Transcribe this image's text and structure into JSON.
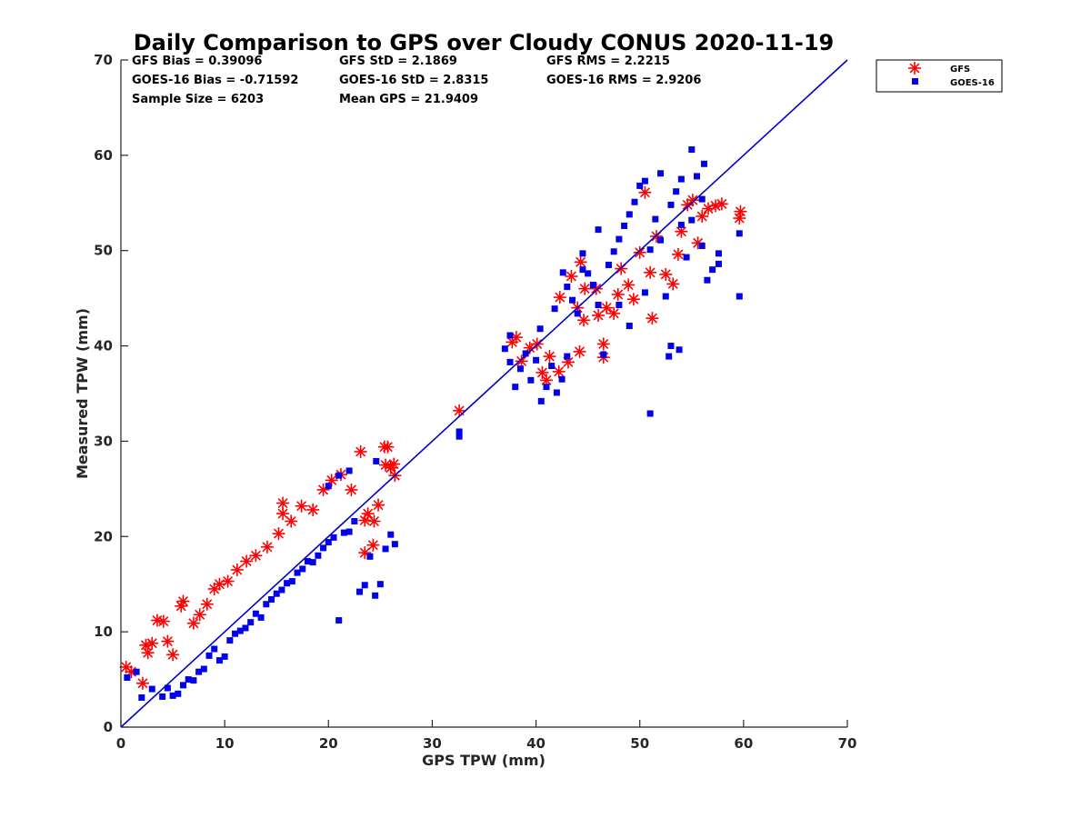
{
  "chart_data": {
    "type": "scatter",
    "title": "Daily Comparison to GPS over Cloudy CONUS 2020-11-19",
    "xlabel": "GPS TPW (mm)",
    "ylabel": "Measured TPW (mm)",
    "xlim": [
      0,
      70
    ],
    "ylim": [
      0,
      70
    ],
    "xticks": [
      "0",
      "10",
      "20",
      "30",
      "40",
      "50",
      "60",
      "70"
    ],
    "yticks": [
      "0",
      "10",
      "20",
      "30",
      "40",
      "50",
      "60",
      "70"
    ],
    "grid": false,
    "legend_position": "outside-top-right",
    "reference_line": {
      "name": "1:1 line",
      "color": "#0000cc",
      "x": [
        0,
        70
      ],
      "y": [
        0,
        70
      ]
    },
    "stats": [
      [
        "GFS Bias = 0.39096",
        "GFS StD = 2.1869",
        "GFS RMS = 2.2215"
      ],
      [
        "GOES-16 Bias = -0.71592",
        "GOES-16 StD = 2.8315",
        "GOES-16 RMS = 2.9206"
      ],
      [
        "Sample Size = 6203",
        "Mean GPS = 21.9409"
      ]
    ],
    "series": [
      {
        "name": "GFS",
        "marker": "asterisk",
        "color": "#ff0000",
        "points": [
          [
            0.5,
            6.3
          ],
          [
            1,
            5.8
          ],
          [
            2.1,
            4.6
          ],
          [
            2.4,
            8.6
          ],
          [
            2.6,
            7.8
          ],
          [
            3.0,
            8.8
          ],
          [
            3.5,
            11.2
          ],
          [
            4.1,
            11.1
          ],
          [
            4.5,
            9.0
          ],
          [
            5.0,
            7.6
          ],
          [
            5.8,
            12.7
          ],
          [
            6.0,
            13.2
          ],
          [
            7.0,
            10.9
          ],
          [
            7.6,
            11.8
          ],
          [
            8.3,
            12.9
          ],
          [
            9.0,
            14.5
          ],
          [
            9.5,
            15.0
          ],
          [
            10.3,
            15.3
          ],
          [
            11.2,
            16.5
          ],
          [
            12.1,
            17.4
          ],
          [
            13.0,
            18.0
          ],
          [
            14.1,
            18.9
          ],
          [
            15.2,
            20.3
          ],
          [
            15.6,
            22.4
          ],
          [
            15.6,
            23.5
          ],
          [
            16.4,
            21.6
          ],
          [
            17.4,
            23.2
          ],
          [
            18.5,
            22.8
          ],
          [
            19.5,
            24.9
          ],
          [
            20.3,
            25.9
          ],
          [
            21.2,
            26.5
          ],
          [
            22.2,
            24.9
          ],
          [
            23.1,
            28.9
          ],
          [
            23.5,
            21.7
          ],
          [
            23.5,
            18.3
          ],
          [
            23.8,
            22.4
          ],
          [
            24.3,
            19.1
          ],
          [
            24.4,
            21.6
          ],
          [
            24.8,
            23.3
          ],
          [
            25.4,
            29.4
          ],
          [
            25.7,
            29.4
          ],
          [
            25.5,
            27.5
          ],
          [
            26.0,
            27.2
          ],
          [
            26.3,
            27.6
          ],
          [
            26.4,
            26.4
          ],
          [
            32.6,
            33.2
          ],
          [
            37.7,
            40.4
          ],
          [
            38.1,
            40.9
          ],
          [
            38.6,
            38.4
          ],
          [
            39.4,
            39.8
          ],
          [
            40.1,
            40.2
          ],
          [
            40.6,
            37.2
          ],
          [
            41.3,
            38.9
          ],
          [
            41.0,
            36.4
          ],
          [
            42.2,
            37.3
          ],
          [
            43.1,
            38.3
          ],
          [
            44.2,
            39.4
          ],
          [
            43.4,
            47.3
          ],
          [
            42.3,
            45.1
          ],
          [
            44.3,
            48.8
          ],
          [
            44.7,
            46.0
          ],
          [
            44.0,
            44.0
          ],
          [
            44.6,
            42.7
          ],
          [
            46.0,
            43.2
          ],
          [
            45.8,
            46.0
          ],
          [
            46.5,
            40.2
          ],
          [
            46.5,
            38.8
          ],
          [
            46.8,
            44.0
          ],
          [
            47.5,
            43.4
          ],
          [
            47.9,
            45.4
          ],
          [
            48.2,
            48.1
          ],
          [
            48.9,
            46.4
          ],
          [
            49.4,
            44.9
          ],
          [
            50.0,
            49.8
          ],
          [
            50.5,
            56.1
          ],
          [
            51.2,
            42.9
          ],
          [
            51.0,
            47.7
          ],
          [
            51.6,
            51.5
          ],
          [
            52.5,
            47.5
          ],
          [
            53.2,
            46.5
          ],
          [
            53.7,
            49.6
          ],
          [
            54.0,
            52.0
          ],
          [
            54.6,
            54.8
          ],
          [
            55.1,
            55.3
          ],
          [
            55.6,
            50.8
          ],
          [
            56.0,
            53.6
          ],
          [
            56.6,
            54.4
          ],
          [
            57.3,
            54.7
          ],
          [
            57.9,
            54.9
          ],
          [
            59.6,
            53.4
          ],
          [
            59.7,
            54.1
          ]
        ]
      },
      {
        "name": "GOES-16",
        "marker": "square",
        "color": "#0000ee",
        "points": [
          [
            0.6,
            5.2
          ],
          [
            1.5,
            5.8
          ],
          [
            2.0,
            3.1
          ],
          [
            3.0,
            4.0
          ],
          [
            4.0,
            3.2
          ],
          [
            4.5,
            4.1
          ],
          [
            5.0,
            3.3
          ],
          [
            5.5,
            3.5
          ],
          [
            6.0,
            4.4
          ],
          [
            6.5,
            5.0
          ],
          [
            7.0,
            4.9
          ],
          [
            7.5,
            5.8
          ],
          [
            8.0,
            6.1
          ],
          [
            8.5,
            7.5
          ],
          [
            9.0,
            8.2
          ],
          [
            9.5,
            7.0
          ],
          [
            10.0,
            7.4
          ],
          [
            10.5,
            9.1
          ],
          [
            11.0,
            9.8
          ],
          [
            11.5,
            10.1
          ],
          [
            12.0,
            10.4
          ],
          [
            12.5,
            11.0
          ],
          [
            13.0,
            11.9
          ],
          [
            13.5,
            11.5
          ],
          [
            14.0,
            12.9
          ],
          [
            14.5,
            13.4
          ],
          [
            15.0,
            14.0
          ],
          [
            15.5,
            14.4
          ],
          [
            16.0,
            15.1
          ],
          [
            16.5,
            15.3
          ],
          [
            17.0,
            16.2
          ],
          [
            17.5,
            16.6
          ],
          [
            18.0,
            17.4
          ],
          [
            18.5,
            17.3
          ],
          [
            19.0,
            18.0
          ],
          [
            19.5,
            18.8
          ],
          [
            20.0,
            19.4
          ],
          [
            20.5,
            19.9
          ],
          [
            21.0,
            11.2
          ],
          [
            21.5,
            20.4
          ],
          [
            22.0,
            20.5
          ],
          [
            22.5,
            21.6
          ],
          [
            23.0,
            14.2
          ],
          [
            23.5,
            14.9
          ],
          [
            24.0,
            17.9
          ],
          [
            24.5,
            13.8
          ],
          [
            25.0,
            15.0
          ],
          [
            25.5,
            18.7
          ],
          [
            26.0,
            20.2
          ],
          [
            26.4,
            19.2
          ],
          [
            20.0,
            25.3
          ],
          [
            21.0,
            26.4
          ],
          [
            22.0,
            26.9
          ],
          [
            24.6,
            27.9
          ],
          [
            32.6,
            30.5
          ],
          [
            32.6,
            31.0
          ],
          [
            37.0,
            39.7
          ],
          [
            37.5,
            38.3
          ],
          [
            38.0,
            35.7
          ],
          [
            38.5,
            37.6
          ],
          [
            39.0,
            39.2
          ],
          [
            39.5,
            36.4
          ],
          [
            40.0,
            38.5
          ],
          [
            40.5,
            34.2
          ],
          [
            41.0,
            35.7
          ],
          [
            41.5,
            37.9
          ],
          [
            42.0,
            35.1
          ],
          [
            42.5,
            36.5
          ],
          [
            43.0,
            38.9
          ],
          [
            37.5,
            41.1
          ],
          [
            40.4,
            41.8
          ],
          [
            41.8,
            43.9
          ],
          [
            42.6,
            47.7
          ],
          [
            43.0,
            46.2
          ],
          [
            43.5,
            44.8
          ],
          [
            44.0,
            43.4
          ],
          [
            44.5,
            48.0
          ],
          [
            45.0,
            47.6
          ],
          [
            45.5,
            46.4
          ],
          [
            46.0,
            44.3
          ],
          [
            46.5,
            39.1
          ],
          [
            47.0,
            48.5
          ],
          [
            47.5,
            49.9
          ],
          [
            48.0,
            51.2
          ],
          [
            48.5,
            52.6
          ],
          [
            49.0,
            53.8
          ],
          [
            49.5,
            55.1
          ],
          [
            50.0,
            56.8
          ],
          [
            50.5,
            57.3
          ],
          [
            51.0,
            50.1
          ],
          [
            51.0,
            32.9
          ],
          [
            51.5,
            53.3
          ],
          [
            52.0,
            58.1
          ],
          [
            52.5,
            45.2
          ],
          [
            53.0,
            40.0
          ],
          [
            53.5,
            56.2
          ],
          [
            54.0,
            52.7
          ],
          [
            54.5,
            49.3
          ],
          [
            55.0,
            60.6
          ],
          [
            55.5,
            57.8
          ],
          [
            56.0,
            55.4
          ],
          [
            56.5,
            46.9
          ],
          [
            57.0,
            48.0
          ],
          [
            57.6,
            49.7
          ],
          [
            57.6,
            48.6
          ],
          [
            59.6,
            51.8
          ],
          [
            59.6,
            45.2
          ],
          [
            52.8,
            38.9
          ],
          [
            53.8,
            39.6
          ],
          [
            44.5,
            49.7
          ],
          [
            46.0,
            52.2
          ],
          [
            48.0,
            44.3
          ],
          [
            49.0,
            42.1
          ],
          [
            50.5,
            45.6
          ],
          [
            52.0,
            51.1
          ],
          [
            53.0,
            54.8
          ],
          [
            54.0,
            57.5
          ],
          [
            55.0,
            53.2
          ],
          [
            56.0,
            50.5
          ],
          [
            56.2,
            59.1
          ]
        ]
      }
    ]
  }
}
